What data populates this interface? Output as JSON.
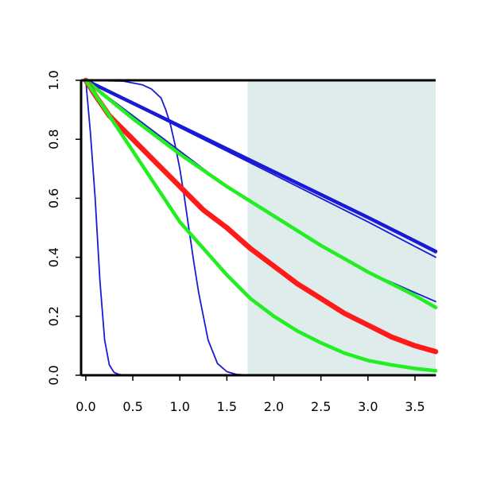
{
  "chart_data": {
    "type": "line",
    "title": "",
    "xlabel": "",
    "ylabel": "",
    "xlim": [
      -0.05,
      3.72
    ],
    "ylim": [
      0,
      1.0
    ],
    "grid": false,
    "legend": "none",
    "x_ticks": [
      "0.0",
      "0.5",
      "1.0",
      "1.5",
      "2.0",
      "2.5",
      "3.0",
      "3.5"
    ],
    "y_ticks": [
      "0.0",
      "0.2",
      "0.4",
      "0.6",
      "0.8",
      "1.0"
    ],
    "shaded_region": {
      "x_start": 1.72,
      "x_end": 3.72,
      "color": "#dfecec"
    },
    "colors": {
      "blue": "#1a1ad6",
      "green": "#22ee22",
      "red": "#ff1a1a",
      "axis": "#000000"
    },
    "series": [
      {
        "color": "blue",
        "width": "thin",
        "x": [
          0,
          0.05,
          0.1,
          0.15,
          0.2,
          0.25,
          0.3,
          0.35,
          0.4,
          0.5,
          0.6,
          1.0,
          2.0,
          3.72
        ],
        "y": [
          1.0,
          0.82,
          0.6,
          0.32,
          0.12,
          0.035,
          0.01,
          0.003,
          0.001,
          0,
          0,
          0,
          0,
          0
        ]
      },
      {
        "color": "blue",
        "width": "thin",
        "x": [
          0,
          0.4,
          0.6,
          0.7,
          0.8,
          0.85,
          0.9,
          0.95,
          1.0,
          1.05,
          1.1,
          1.15,
          1.2,
          1.3,
          1.4,
          1.5,
          1.6,
          1.7,
          1.8
        ],
        "y": [
          1.0,
          0.997,
          0.985,
          0.97,
          0.94,
          0.9,
          0.85,
          0.78,
          0.7,
          0.6,
          0.49,
          0.38,
          0.28,
          0.12,
          0.04,
          0.012,
          0.003,
          0.001,
          0
        ]
      },
      {
        "color": "blue",
        "width": "thin",
        "x": [
          0,
          1.0,
          2.0,
          3.0,
          3.72
        ],
        "y": [
          1.0,
          0.84,
          0.68,
          0.52,
          0.4
        ]
      },
      {
        "color": "blue",
        "width": "thin",
        "x": [
          0,
          1.0,
          2.0,
          3.0,
          3.72
        ],
        "y": [
          1.0,
          0.845,
          0.69,
          0.535,
          0.415
        ]
      },
      {
        "color": "blue",
        "width": "thick",
        "x": [
          0,
          1.0,
          2.0,
          3.0,
          3.72
        ],
        "y": [
          1.0,
          0.845,
          0.69,
          0.535,
          0.42
        ]
      },
      {
        "color": "blue",
        "width": "thin",
        "x": [
          0,
          0.5,
          1.0,
          1.5,
          2.0,
          2.5,
          3.0,
          3.5,
          3.72
        ],
        "y": [
          1.0,
          0.88,
          0.76,
          0.64,
          0.54,
          0.44,
          0.35,
          0.28,
          0.25
        ]
      },
      {
        "color": "green",
        "width": "thick",
        "x": [
          0,
          0.5,
          1.0,
          1.5,
          2.0,
          2.5,
          3.0,
          3.5,
          3.72
        ],
        "y": [
          1.0,
          0.87,
          0.75,
          0.64,
          0.54,
          0.44,
          0.35,
          0.27,
          0.23
        ]
      },
      {
        "color": "red",
        "width": "xthick",
        "x": [
          0,
          0.1,
          0.25,
          0.5,
          0.75,
          1.0,
          1.25,
          1.5,
          1.75,
          2.0,
          2.25,
          2.5,
          2.75,
          3.0,
          3.25,
          3.5,
          3.72
        ],
        "y": [
          1.0,
          0.95,
          0.88,
          0.8,
          0.72,
          0.64,
          0.56,
          0.5,
          0.43,
          0.37,
          0.31,
          0.26,
          0.21,
          0.17,
          0.13,
          0.1,
          0.08
        ]
      },
      {
        "color": "green",
        "width": "thick",
        "x": [
          0,
          0.25,
          0.5,
          0.75,
          1.0,
          1.25,
          1.5,
          1.75,
          2.0,
          2.25,
          2.5,
          2.75,
          3.0,
          3.25,
          3.5,
          3.72
        ],
        "y": [
          1.0,
          0.88,
          0.76,
          0.64,
          0.52,
          0.43,
          0.34,
          0.26,
          0.2,
          0.15,
          0.11,
          0.075,
          0.05,
          0.035,
          0.023,
          0.015
        ]
      }
    ]
  }
}
